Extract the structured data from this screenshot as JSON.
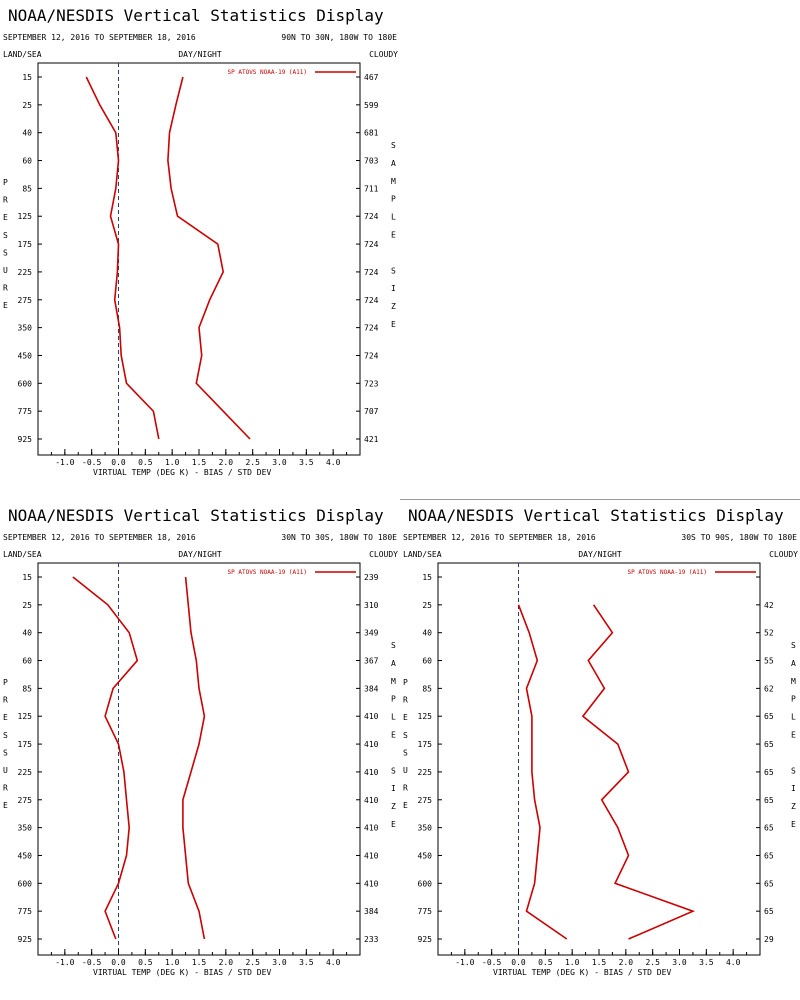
{
  "colors": {
    "series": "#cc0000",
    "axis": "#000000",
    "zero_line": "#2a3f6a"
  },
  "common": {
    "title": "NOAA/NESDIS Vertical Statistics Display",
    "date_range": "SEPTEMBER 12, 2016 TO SEPTEMBER 18, 2016",
    "land_sea": "LAND/SEA",
    "day_night": "DAY/NIGHT",
    "cloudy": "CLOUDY",
    "pressure_letters": [
      "P",
      "R",
      "E",
      "S",
      "S",
      "U",
      "R",
      "E"
    ],
    "sample_size_letters": [
      "S",
      "A",
      "M",
      "P",
      "L",
      "E",
      "",
      "S",
      "I",
      "Z",
      "E"
    ],
    "xlabel": "VIRTUAL TEMP (DEG K) - BIAS / STD DEV"
  },
  "chart_data": [
    {
      "type": "line",
      "region": "90N TO 30N, 180W TO 180E",
      "legend": "SP ATOVS NOAA-19 (A11)",
      "legend_position": "top-right",
      "xlim": [
        -1.5,
        4.5
      ],
      "xticks": [
        "-1.0",
        "-0.5",
        "0.0",
        "0.5",
        "1.0",
        "1.5",
        "2.0",
        "2.5",
        "3.0",
        "3.5",
        "4.0"
      ],
      "pressure_levels": [
        "15",
        "25",
        "40",
        "60",
        "85",
        "125",
        "175",
        "225",
        "275",
        "350",
        "450",
        "600",
        "775",
        "925"
      ],
      "sample_size": [
        "467",
        "599",
        "681",
        "703",
        "711",
        "724",
        "724",
        "724",
        "724",
        "724",
        "724",
        "723",
        "707",
        "421"
      ],
      "series": [
        {
          "values": [
            -0.6,
            -0.35,
            -0.05,
            0.0,
            -0.05,
            -0.15,
            0.0,
            -0.02,
            -0.07,
            0.02,
            0.05,
            0.15,
            0.65,
            0.75
          ]
        },
        {
          "values": [
            1.2,
            1.07,
            0.95,
            0.92,
            0.98,
            1.1,
            1.85,
            1.95,
            1.7,
            1.5,
            1.55,
            1.45,
            1.95,
            2.45
          ]
        }
      ]
    },
    {
      "type": "line",
      "region": "30N TO 30S, 180W TO 180E",
      "legend": "SP ATOVS NOAA-19 (A11)",
      "legend_position": "top-right",
      "xlim": [
        -1.5,
        4.5
      ],
      "xticks": [
        "-1.0",
        "-0.5",
        "0.0",
        "0.5",
        "1.0",
        "1.5",
        "2.0",
        "2.5",
        "3.0",
        "3.5",
        "4.0"
      ],
      "pressure_levels": [
        "15",
        "25",
        "40",
        "60",
        "85",
        "125",
        "175",
        "225",
        "275",
        "350",
        "450",
        "600",
        "775",
        "925"
      ],
      "sample_size": [
        "239",
        "310",
        "349",
        "367",
        "384",
        "410",
        "410",
        "410",
        "410",
        "410",
        "410",
        "410",
        "384",
        "233"
      ],
      "series": [
        {
          "values": [
            -0.85,
            -0.2,
            0.2,
            0.35,
            -0.1,
            -0.25,
            0.0,
            0.1,
            0.15,
            0.2,
            0.15,
            0.0,
            -0.25,
            -0.05
          ]
        },
        {
          "values": [
            1.25,
            1.3,
            1.35,
            1.45,
            1.5,
            1.6,
            1.5,
            1.35,
            1.2,
            1.2,
            1.25,
            1.3,
            1.5,
            1.6
          ]
        }
      ]
    },
    {
      "type": "line",
      "region": "30S TO 90S, 180W TO 180E",
      "legend": "SP ATOVS NOAA-19 (A11)",
      "legend_position": "top-right",
      "xlim": [
        -1.5,
        4.5
      ],
      "xticks": [
        "-1.0",
        "-0.5",
        "0.0",
        "0.5",
        "1.0",
        "1.5",
        "2.0",
        "2.5",
        "3.0",
        "3.5",
        "4.0"
      ],
      "pressure_levels": [
        "15",
        "25",
        "40",
        "60",
        "85",
        "125",
        "175",
        "225",
        "275",
        "350",
        "450",
        "600",
        "775",
        "925"
      ],
      "sample_size": [
        "",
        "42",
        "52",
        "55",
        "62",
        "65",
        "65",
        "65",
        "65",
        "65",
        "65",
        "65",
        "65",
        "29"
      ],
      "series": [
        {
          "values": [
            null,
            0.0,
            0.2,
            0.35,
            0.15,
            0.25,
            0.25,
            0.25,
            0.3,
            0.4,
            0.35,
            0.3,
            0.15,
            0.9
          ]
        },
        {
          "values": [
            null,
            1.4,
            1.75,
            1.3,
            1.6,
            1.2,
            1.85,
            2.05,
            1.55,
            1.85,
            2.05,
            1.8,
            3.25,
            2.05
          ]
        }
      ]
    }
  ]
}
